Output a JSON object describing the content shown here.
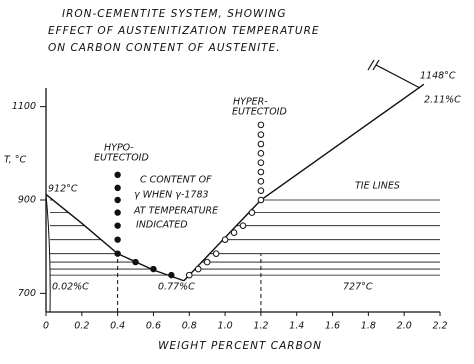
{
  "chart_data": {
    "type": "line",
    "title_lines": [
      "IRON-CEMENTITE SYSTEM, SHOWING",
      "EFFECT OF AUSTENITIZATION TEMPERATURE",
      "ON CARBON CONTENT OF AUSTENITE."
    ],
    "ylabel": "T, °C",
    "xlabel": "WEIGHT PERCENT CARBON",
    "xlim": [
      0,
      2.2
    ],
    "ylim": [
      660,
      1140
    ],
    "xticks": [
      0,
      0.2,
      0.4,
      0.6,
      0.8,
      {
        "value": 1,
        "label": "1.0"
      },
      1.2,
      1.4,
      1.6,
      1.8,
      {
        "value": 2,
        "label": "2.0"
      },
      2.2
    ],
    "yticks": [
      700,
      900,
      1100
    ],
    "color": "#111111",
    "series": [
      {
        "style": "line",
        "x": [
          0,
          0.2,
          0.4,
          0.6,
          0.77
        ],
        "values": [
          912,
          850,
          785,
          750,
          727
        ]
      },
      {
        "style": "line",
        "x": [
          0.77,
          1.2,
          2.11
        ],
        "values": [
          727,
          900,
          1148
        ]
      },
      {
        "style": "dot",
        "x": [
          0.4,
          0.4,
          0.4,
          0.4,
          0.4,
          0.4,
          0.4,
          0.5,
          0.6,
          0.7
        ],
        "values": [
          954,
          926,
          900,
          873,
          845,
          815,
          785,
          767,
          752,
          739
        ]
      },
      {
        "style": "circle",
        "x": [
          0.8,
          0.85,
          0.9,
          0.95,
          1.0,
          1.05,
          1.1,
          1.15,
          1.2
        ],
        "values": [
          739,
          752,
          767,
          785,
          815,
          830,
          845,
          873,
          900
        ]
      },
      {
        "style": "circle",
        "x": [
          1.2,
          1.2,
          1.2,
          1.2,
          1.2,
          1.2,
          1.2,
          1.2
        ],
        "values": [
          920,
          940,
          960,
          980,
          1000,
          1020,
          1040,
          1061
        ]
      }
    ],
    "tie_lines": [
      900,
      873,
      845,
      815,
      785,
      767,
      752,
      739
    ],
    "guides_x": [
      0.4,
      1.2
    ],
    "annotations": {
      "hypo": "HYPO-",
      "hypo2": "EUTECTOID",
      "hyper": "HYPER-",
      "hyper2": "EUTECTOID",
      "note1": "C CONTENT OF",
      "note2": "γ WHEN γ-1783",
      "note3": "AT TEMPERATURE",
      "note4": "INDICATED",
      "tie": "TIE LINES",
      "t912": "912°C",
      "c002": "0.02%C",
      "c077": "0.77%C",
      "t727": "727°C",
      "t1148": "1148°C",
      "c211": "2.11%C"
    }
  }
}
